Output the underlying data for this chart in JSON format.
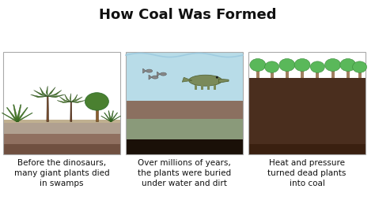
{
  "title": "How Coal Was Formed",
  "title_fontsize": 13,
  "title_fontweight": "bold",
  "bg_color": "#ffffff",
  "captions": [
    "Before the dinosaurs,\nmany giant plants died\nin swamps",
    "Over millions of years,\nthe plants were buried\nunder water and dirt",
    "Heat and pressure\nturned dead plants\ninto coal"
  ],
  "caption_fontsize": 7.5,
  "panel1": {
    "sky_color": "#ffffff",
    "ground_top_color": "#b0a090",
    "ground_mid_color": "#907060",
    "ground_bot_color": "#705040"
  },
  "panel2": {
    "sky_color": "#ffffff",
    "water_color": "#b8dce8",
    "water_top_color": "#d0ecf5",
    "layer1_color": "#8b7060",
    "layer2_color": "#8a9a7a",
    "layer3_color": "#1a1008"
  },
  "panel3": {
    "sky_color": "#ffffff",
    "tree_leaf_color": "#5ab85a",
    "tree_leaf_edge": "#3a8a3a",
    "trunk_color": "#a08060",
    "soil_top_color": "#4a2e1e",
    "soil_mid_color": "#3a2010",
    "soil_bot_color": "#2a1808",
    "thin_dark": "#0a0808"
  },
  "panel_border": "#aaaaaa",
  "divider_color": "#aaaaaa",
  "figsize": [
    4.74,
    2.55
  ],
  "dpi": 100
}
